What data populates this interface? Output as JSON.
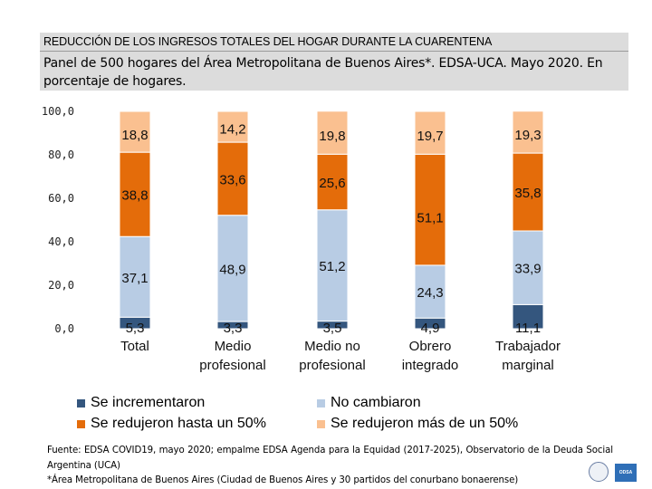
{
  "header": {
    "title": "REDUCCIÓN DE LOS INGRESOS TOTALES DEL HOGAR DURANTE LA CUARENTENA",
    "subtitle": "Panel de 500 hogares del Área Metropolitana de Buenos Aires*. EDSA-UCA. Mayo 2020. En porcentaje de hogares."
  },
  "colors": {
    "increased": "#34567e",
    "unchanged": "#b8cce4",
    "reduced_up_to_50": "#e46c0a",
    "reduced_more_50": "#fac090"
  },
  "chart_data": {
    "type": "bar",
    "stacked": true,
    "ylim": [
      0,
      100
    ],
    "yticks": [
      "0,0",
      "20,0",
      "40,0",
      "60,0",
      "80,0",
      "100,0"
    ],
    "categories": [
      [
        "Total"
      ],
      [
        "Medio",
        "profesional"
      ],
      [
        "Medio no",
        "profesional"
      ],
      [
        "Obrero",
        "integrado"
      ],
      [
        "Trabajador",
        "marginal"
      ]
    ],
    "series": [
      {
        "name": "Se incrementaron",
        "key": "increased",
        "values": [
          5.3,
          3.3,
          3.5,
          4.9,
          11.1
        ],
        "labels": [
          "5,3",
          "3,3",
          "3,5",
          "4,9",
          "11,1"
        ]
      },
      {
        "name": "No cambiaron",
        "key": "unchanged",
        "values": [
          37.1,
          48.9,
          51.2,
          24.3,
          33.9
        ],
        "labels": [
          "37,1",
          "48,9",
          "51,2",
          "24,3",
          "33,9"
        ]
      },
      {
        "name": "Se redujeron hasta un 50%",
        "key": "reduced_up_to_50",
        "values": [
          38.8,
          33.6,
          25.6,
          51.1,
          35.8
        ],
        "labels": [
          "38,8",
          "33,6",
          "25,6",
          "51,1",
          "35,8"
        ]
      },
      {
        "name": "Se redujeron más de un 50%",
        "key": "reduced_more_50",
        "values": [
          18.8,
          14.2,
          19.8,
          19.7,
          19.3
        ],
        "labels": [
          "18,8",
          "14,2",
          "19,8",
          "19,7",
          "19,3"
        ]
      }
    ],
    "legend": {
      "increased": "Se incrementaron",
      "unchanged": "No cambiaron",
      "reduced_up_to_50": "Se redujeron hasta un 50%",
      "reduced_more_50": "Se redujeron más de un 50%"
    }
  },
  "footer": {
    "source": "Fuente: EDSA COVID19, mayo 2020; empalme EDSA Agenda para la Equidad (2017-2025), Observatorio de la Deuda Social Argentina (UCA)",
    "note": "*Área Metropolitana de Buenos Aires (Ciudad de Buenos Aires y 30 partidos del conurbano bonaerense)"
  },
  "logo": {
    "text": "ODSA"
  }
}
